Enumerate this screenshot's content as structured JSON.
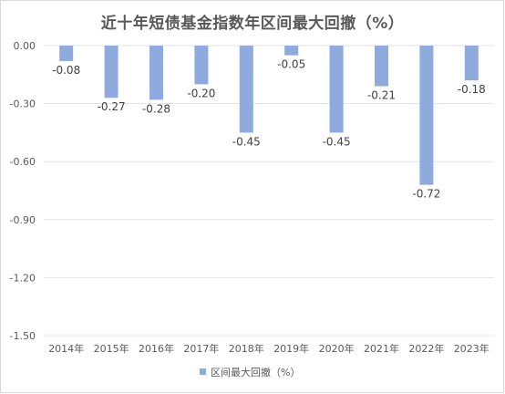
{
  "chart_data": {
    "type": "bar",
    "title": "近十年短债基金指数年区间最大回撤（%）",
    "categories": [
      "2014年",
      "2015年",
      "2016年",
      "2017年",
      "2018年",
      "2019年",
      "2020年",
      "2021年",
      "2022年",
      "2023年"
    ],
    "series": [
      {
        "name": "区间最大回撤（%）",
        "values": [
          -0.08,
          -0.27,
          -0.28,
          -0.2,
          -0.45,
          -0.05,
          -0.45,
          -0.21,
          -0.72,
          -0.18
        ],
        "labels": [
          "-0.08",
          "-0.27",
          "-0.28",
          "-0.20",
          "-0.45",
          "-0.05",
          "-0.45",
          "-0.21",
          "-0.72",
          "-0.18"
        ]
      }
    ],
    "yticks": [
      "0.00",
      "-0.30",
      "-0.60",
      "-0.90",
      "-1.20",
      "-1.50"
    ],
    "ylim": [
      -1.5,
      0
    ],
    "grid": true,
    "legend": "bottom",
    "colors": {
      "bar": "#8faadc",
      "grid": "#e3e3e3",
      "text": "#595959"
    }
  }
}
